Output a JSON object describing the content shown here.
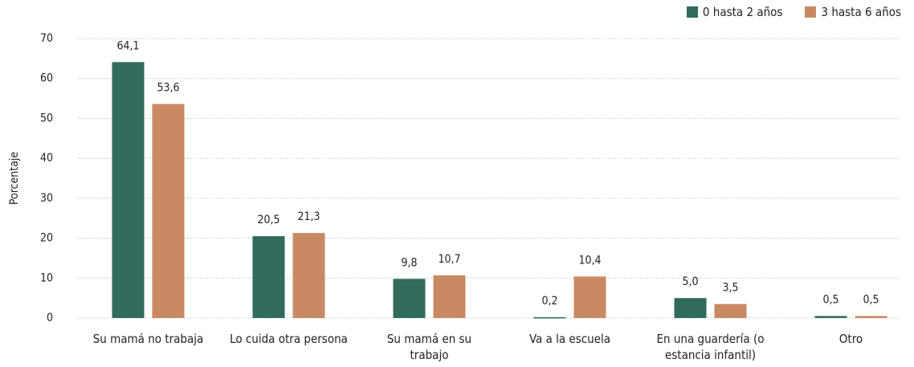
{
  "chart_data": {
    "type": "bar",
    "y_label": "Porcentaje",
    "categories": [
      "Su mamá no trabaja",
      "Lo cuida otra persona",
      "Su mamá en su trabajo",
      "Va a la escuela",
      "En una guardería (o estancia infantil)",
      "Otro"
    ],
    "series": [
      {
        "name": "0 hasta 2 años",
        "color": "#316b5b",
        "values": [
          64.1,
          20.5,
          9.8,
          0.2,
          5.0,
          0.5
        ],
        "value_labels": [
          "64,1",
          "20,5",
          "9,8",
          "0,2",
          "5,0",
          "0,5"
        ]
      },
      {
        "name": "3 hasta 6 años",
        "color": "#c98a63",
        "values": [
          53.6,
          21.3,
          10.7,
          10.4,
          3.5,
          0.5
        ],
        "value_labels": [
          "53,6",
          "21,3",
          "10,7",
          "10,4",
          "3,5",
          "0,5"
        ]
      }
    ],
    "ylim": [
      0,
      70
    ],
    "yticks": [
      0,
      10,
      20,
      30,
      40,
      50,
      60,
      70
    ],
    "grid": true
  }
}
